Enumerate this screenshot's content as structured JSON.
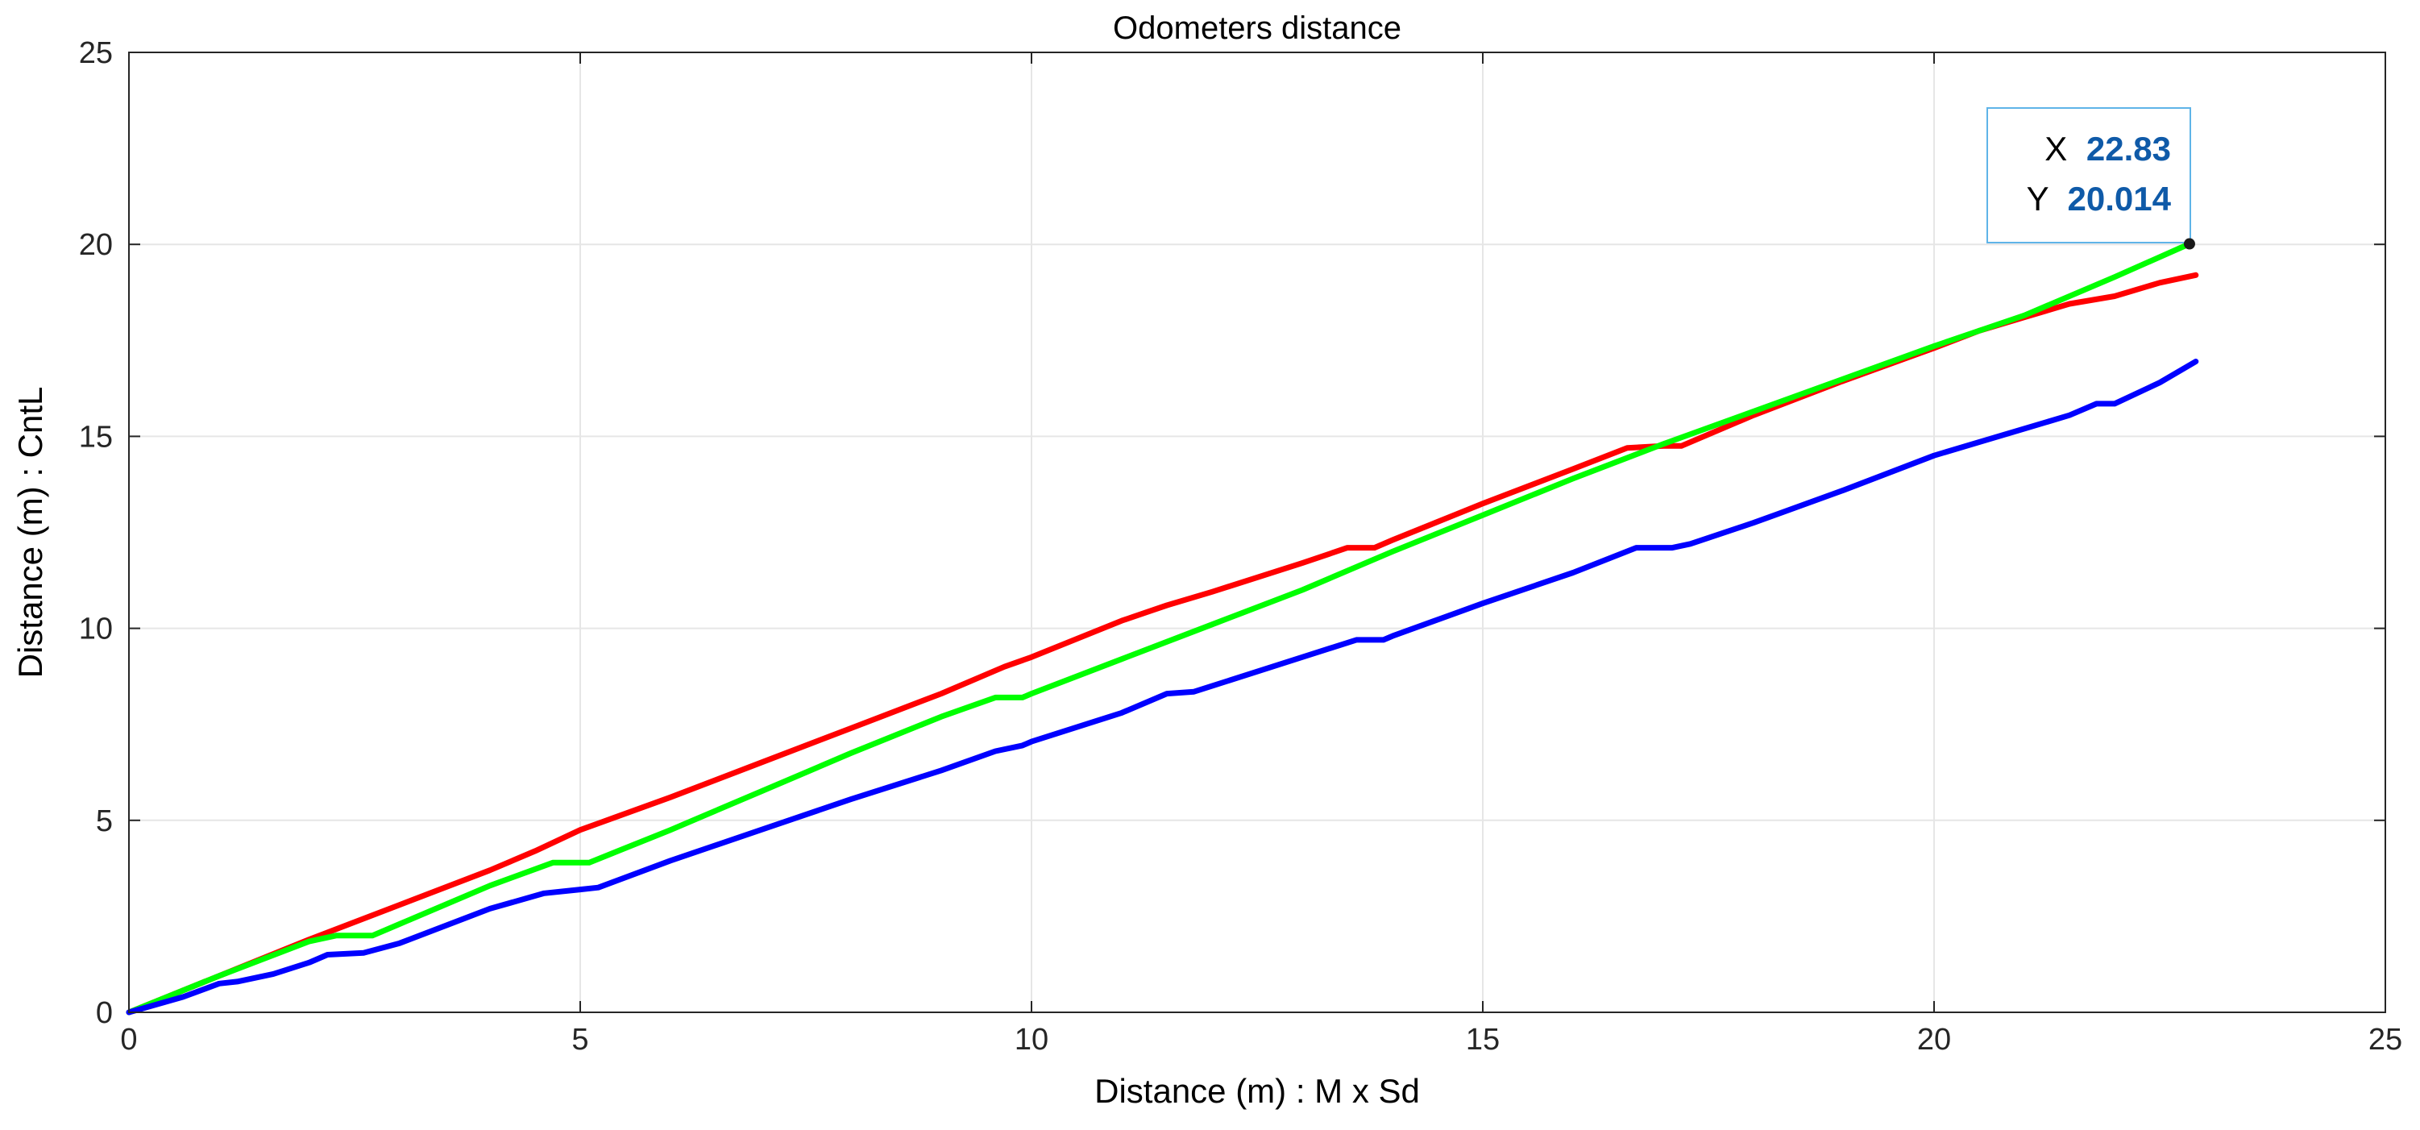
{
  "chart_data": {
    "type": "line",
    "title": "Odometers distance",
    "xlabel": "Distance (m) : M x Sd",
    "ylabel": "Distance (m) : CntL",
    "xlim": [
      0,
      25
    ],
    "ylim": [
      0,
      25
    ],
    "xticks": [
      0,
      5,
      10,
      15,
      20,
      25
    ],
    "yticks": [
      0,
      5,
      10,
      15,
      20,
      25
    ],
    "grid": true,
    "legend": "none",
    "series": [
      {
        "color": "#ff0000",
        "x": [
          0,
          1,
          2,
          3,
          4,
          4.5,
          5,
          6,
          7,
          8,
          9,
          9.7,
          10,
          11,
          11.5,
          12,
          13,
          13.5,
          13.8,
          14,
          15,
          16,
          16.6,
          17,
          17.2,
          18,
          19,
          20,
          20.5,
          21,
          21.5,
          22,
          22.5,
          22.9
        ],
        "y": [
          0,
          0.95,
          1.9,
          2.8,
          3.7,
          4.2,
          4.75,
          5.6,
          6.5,
          7.4,
          8.3,
          9.0,
          9.25,
          10.2,
          10.6,
          10.95,
          11.7,
          12.1,
          12.1,
          12.3,
          13.25,
          14.15,
          14.7,
          14.75,
          14.75,
          15.55,
          16.45,
          17.3,
          17.75,
          18.1,
          18.45,
          18.65,
          19.0,
          19.2
        ]
      },
      {
        "color": "#00ff00",
        "x": [
          0,
          1,
          2,
          2.3,
          2.7,
          3,
          4,
          4.7,
          5.1,
          6,
          7,
          8,
          9,
          9.6,
          9.9,
          10,
          11,
          12,
          13,
          14,
          15,
          16,
          17,
          18,
          19,
          20,
          21,
          22,
          22.83
        ],
        "y": [
          0,
          0.95,
          1.85,
          2.0,
          2.0,
          2.3,
          3.3,
          3.9,
          3.9,
          4.75,
          5.75,
          6.75,
          7.7,
          8.2,
          8.2,
          8.3,
          9.2,
          10.1,
          11.0,
          12.0,
          12.95,
          13.9,
          14.8,
          15.65,
          16.5,
          17.35,
          18.15,
          19.15,
          20.014
        ]
      },
      {
        "color": "#0000ff",
        "x": [
          0,
          0.6,
          1,
          1.2,
          1.6,
          2,
          2.2,
          2.6,
          3,
          4,
          4.6,
          5,
          5.2,
          6,
          7,
          8,
          9,
          9.6,
          9.9,
          10,
          11,
          11.5,
          11.8,
          12,
          13,
          13.6,
          13.9,
          14,
          15,
          16,
          16.7,
          17.1,
          17.3,
          18,
          19,
          20,
          20.5,
          21,
          21.5,
          21.8,
          22,
          22.5,
          22.9
        ],
        "y": [
          0,
          0.4,
          0.75,
          0.8,
          1.0,
          1.3,
          1.5,
          1.55,
          1.8,
          2.7,
          3.1,
          3.2,
          3.25,
          3.95,
          4.75,
          5.55,
          6.3,
          6.8,
          6.95,
          7.05,
          7.8,
          8.3,
          8.35,
          8.5,
          9.25,
          9.7,
          9.7,
          9.8,
          10.65,
          11.45,
          12.1,
          12.1,
          12.2,
          12.75,
          13.6,
          14.5,
          14.85,
          15.2,
          15.55,
          15.85,
          15.85,
          16.4,
          16.95
        ]
      }
    ],
    "datatip": {
      "x_label": "X",
      "x_value": "22.83",
      "y_label": "Y",
      "y_value": "20.014",
      "point": [
        22.83,
        20.014
      ]
    }
  },
  "colors": {
    "grid": "#e6e6e6",
    "axis": "#262626",
    "datatip_border": "#5fb4e8",
    "datatip_value": "#0f5aa8"
  }
}
